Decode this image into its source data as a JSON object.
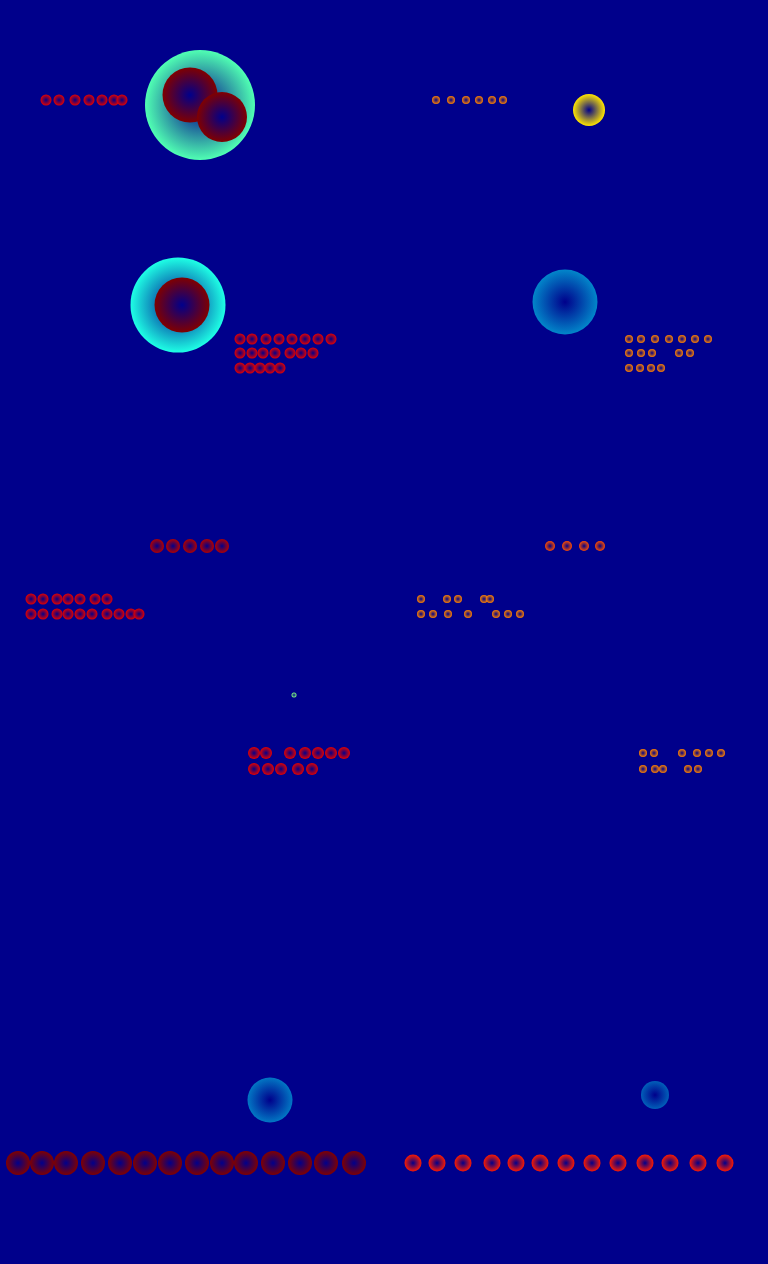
{
  "chart_data": {
    "type": "scatter",
    "tick_labels": false,
    "grid": false,
    "xlim": [
      0,
      768
    ],
    "ylim": [
      1264,
      0
    ],
    "color_range": [
      0,
      1
    ],
    "x": [
      46,
      59,
      75,
      89,
      102,
      114,
      122,
      200,
      190,
      222,
      436,
      451,
      466,
      479,
      492,
      503,
      589,
      178,
      182,
      240,
      252,
      266,
      279,
      292,
      305,
      318,
      331,
      240,
      252,
      263,
      275,
      290,
      301,
      313,
      240,
      250,
      260,
      270,
      280,
      565,
      629,
      641,
      655,
      669,
      682,
      695,
      708,
      629,
      641,
      652,
      679,
      690,
      629,
      640,
      651,
      661,
      157,
      173,
      190,
      207,
      222,
      550,
      567,
      584,
      600,
      31,
      43,
      57,
      68,
      80,
      95,
      107,
      31,
      43,
      57,
      68,
      80,
      92,
      107,
      119,
      131,
      139,
      421,
      447,
      458,
      484,
      490,
      421,
      433,
      448,
      468,
      496,
      508,
      520,
      294,
      254,
      266,
      290,
      305,
      318,
      331,
      344,
      254,
      268,
      281,
      298,
      312,
      643,
      654,
      682,
      697,
      709,
      721,
      643,
      655,
      663,
      688,
      698,
      270,
      655,
      18,
      42,
      66,
      93,
      120,
      145,
      170,
      197,
      222,
      246,
      273,
      300,
      326,
      354,
      413,
      437,
      463,
      492,
      516,
      540,
      566,
      592,
      618,
      645,
      670,
      698,
      725
    ],
    "y": [
      100,
      100,
      100,
      100,
      100,
      100,
      100,
      105,
      95,
      117,
      100,
      100,
      100,
      100,
      100,
      100,
      110,
      305,
      305,
      339,
      339,
      339,
      339,
      339,
      339,
      339,
      339,
      353,
      353,
      353,
      353,
      353,
      353,
      353,
      368,
      368,
      368,
      368,
      368,
      302,
      339,
      339,
      339,
      339,
      339,
      339,
      339,
      353,
      353,
      353,
      353,
      353,
      368,
      368,
      368,
      368,
      546,
      546,
      546,
      546,
      546,
      546,
      546,
      546,
      546,
      599,
      599,
      599,
      599,
      599,
      599,
      599,
      614,
      614,
      614,
      614,
      614,
      614,
      614,
      614,
      614,
      614,
      599,
      599,
      599,
      599,
      599,
      614,
      614,
      614,
      614,
      614,
      614,
      614,
      695,
      753,
      753,
      753,
      753,
      753,
      753,
      753,
      769,
      769,
      769,
      769,
      769,
      753,
      753,
      753,
      753,
      753,
      753,
      769,
      769,
      769,
      769,
      769,
      1100,
      1095,
      1163,
      1163,
      1163,
      1163,
      1163,
      1163,
      1163,
      1163,
      1163,
      1163,
      1163,
      1163,
      1163,
      1163,
      1163,
      1163,
      1163,
      1163,
      1163,
      1163,
      1163,
      1163,
      1163,
      1163,
      1163,
      1163,
      1163
    ],
    "sizes": [
      11,
      11,
      11,
      11,
      11,
      11,
      11,
      110,
      55,
      50,
      8,
      8,
      8,
      8,
      8,
      8,
      32,
      95,
      55,
      11,
      11,
      11,
      11,
      11,
      11,
      11,
      11,
      11,
      11,
      11,
      11,
      11,
      11,
      11,
      11,
      11,
      11,
      11,
      11,
      65,
      8,
      8,
      8,
      8,
      8,
      8,
      8,
      8,
      8,
      8,
      8,
      8,
      8,
      8,
      8,
      8,
      14,
      14,
      14,
      14,
      14,
      10,
      10,
      10,
      10,
      11,
      11,
      11,
      11,
      11,
      11,
      11,
      11,
      11,
      11,
      11,
      11,
      11,
      11,
      11,
      11,
      11,
      8,
      8,
      8,
      8,
      8,
      8,
      8,
      8,
      8,
      8,
      8,
      8,
      5,
      12,
      12,
      12,
      12,
      12,
      12,
      12,
      12,
      12,
      12,
      12,
      12,
      8,
      8,
      8,
      8,
      8,
      8,
      8,
      8,
      8,
      8,
      8,
      45,
      28,
      24,
      24,
      24,
      24,
      24,
      24,
      24,
      24,
      24,
      24,
      24,
      24,
      24,
      24,
      17,
      17,
      17,
      17,
      17,
      17,
      17,
      17,
      17,
      17,
      17,
      17,
      17
    ],
    "values": [
      0.9,
      0.9,
      0.9,
      0.9,
      0.9,
      0.9,
      0.9,
      0.45,
      1,
      1,
      0.75,
      0.75,
      0.75,
      0.75,
      0.75,
      0.75,
      0.65,
      0.4,
      1,
      0.9,
      0.9,
      0.9,
      0.9,
      0.9,
      0.9,
      0.9,
      0.9,
      0.9,
      0.9,
      0.9,
      0.9,
      0.9,
      0.9,
      0.9,
      0.9,
      0.9,
      0.9,
      0.9,
      0.9,
      0.22,
      0.75,
      0.75,
      0.75,
      0.75,
      0.75,
      0.75,
      0.75,
      0.75,
      0.75,
      0.75,
      0.75,
      0.75,
      0.75,
      0.75,
      0.75,
      0.75,
      0.95,
      0.95,
      0.95,
      0.95,
      0.95,
      0.8,
      0.8,
      0.8,
      0.8,
      0.9,
      0.9,
      0.9,
      0.9,
      0.9,
      0.9,
      0.9,
      0.9,
      0.9,
      0.9,
      0.9,
      0.9,
      0.9,
      0.9,
      0.9,
      0.9,
      0.9,
      0.75,
      0.75,
      0.75,
      0.75,
      0.75,
      0.75,
      0.75,
      0.75,
      0.75,
      0.75,
      0.75,
      0.75,
      0.5,
      0.9,
      0.9,
      0.9,
      0.9,
      0.9,
      0.9,
      0.9,
      0.9,
      0.9,
      0.9,
      0.9,
      0.9,
      0.75,
      0.75,
      0.75,
      0.75,
      0.75,
      0.75,
      0.75,
      0.75,
      0.75,
      0.75,
      0.75,
      0.2,
      0.17,
      1,
      1,
      1,
      1,
      1,
      1,
      1,
      1,
      1,
      1,
      1,
      1,
      1,
      1,
      0.85,
      0.85,
      0.85,
      0.85,
      0.85,
      0.85,
      0.85,
      0.85,
      0.85,
      0.85,
      0.85,
      0.85,
      0.85
    ]
  }
}
